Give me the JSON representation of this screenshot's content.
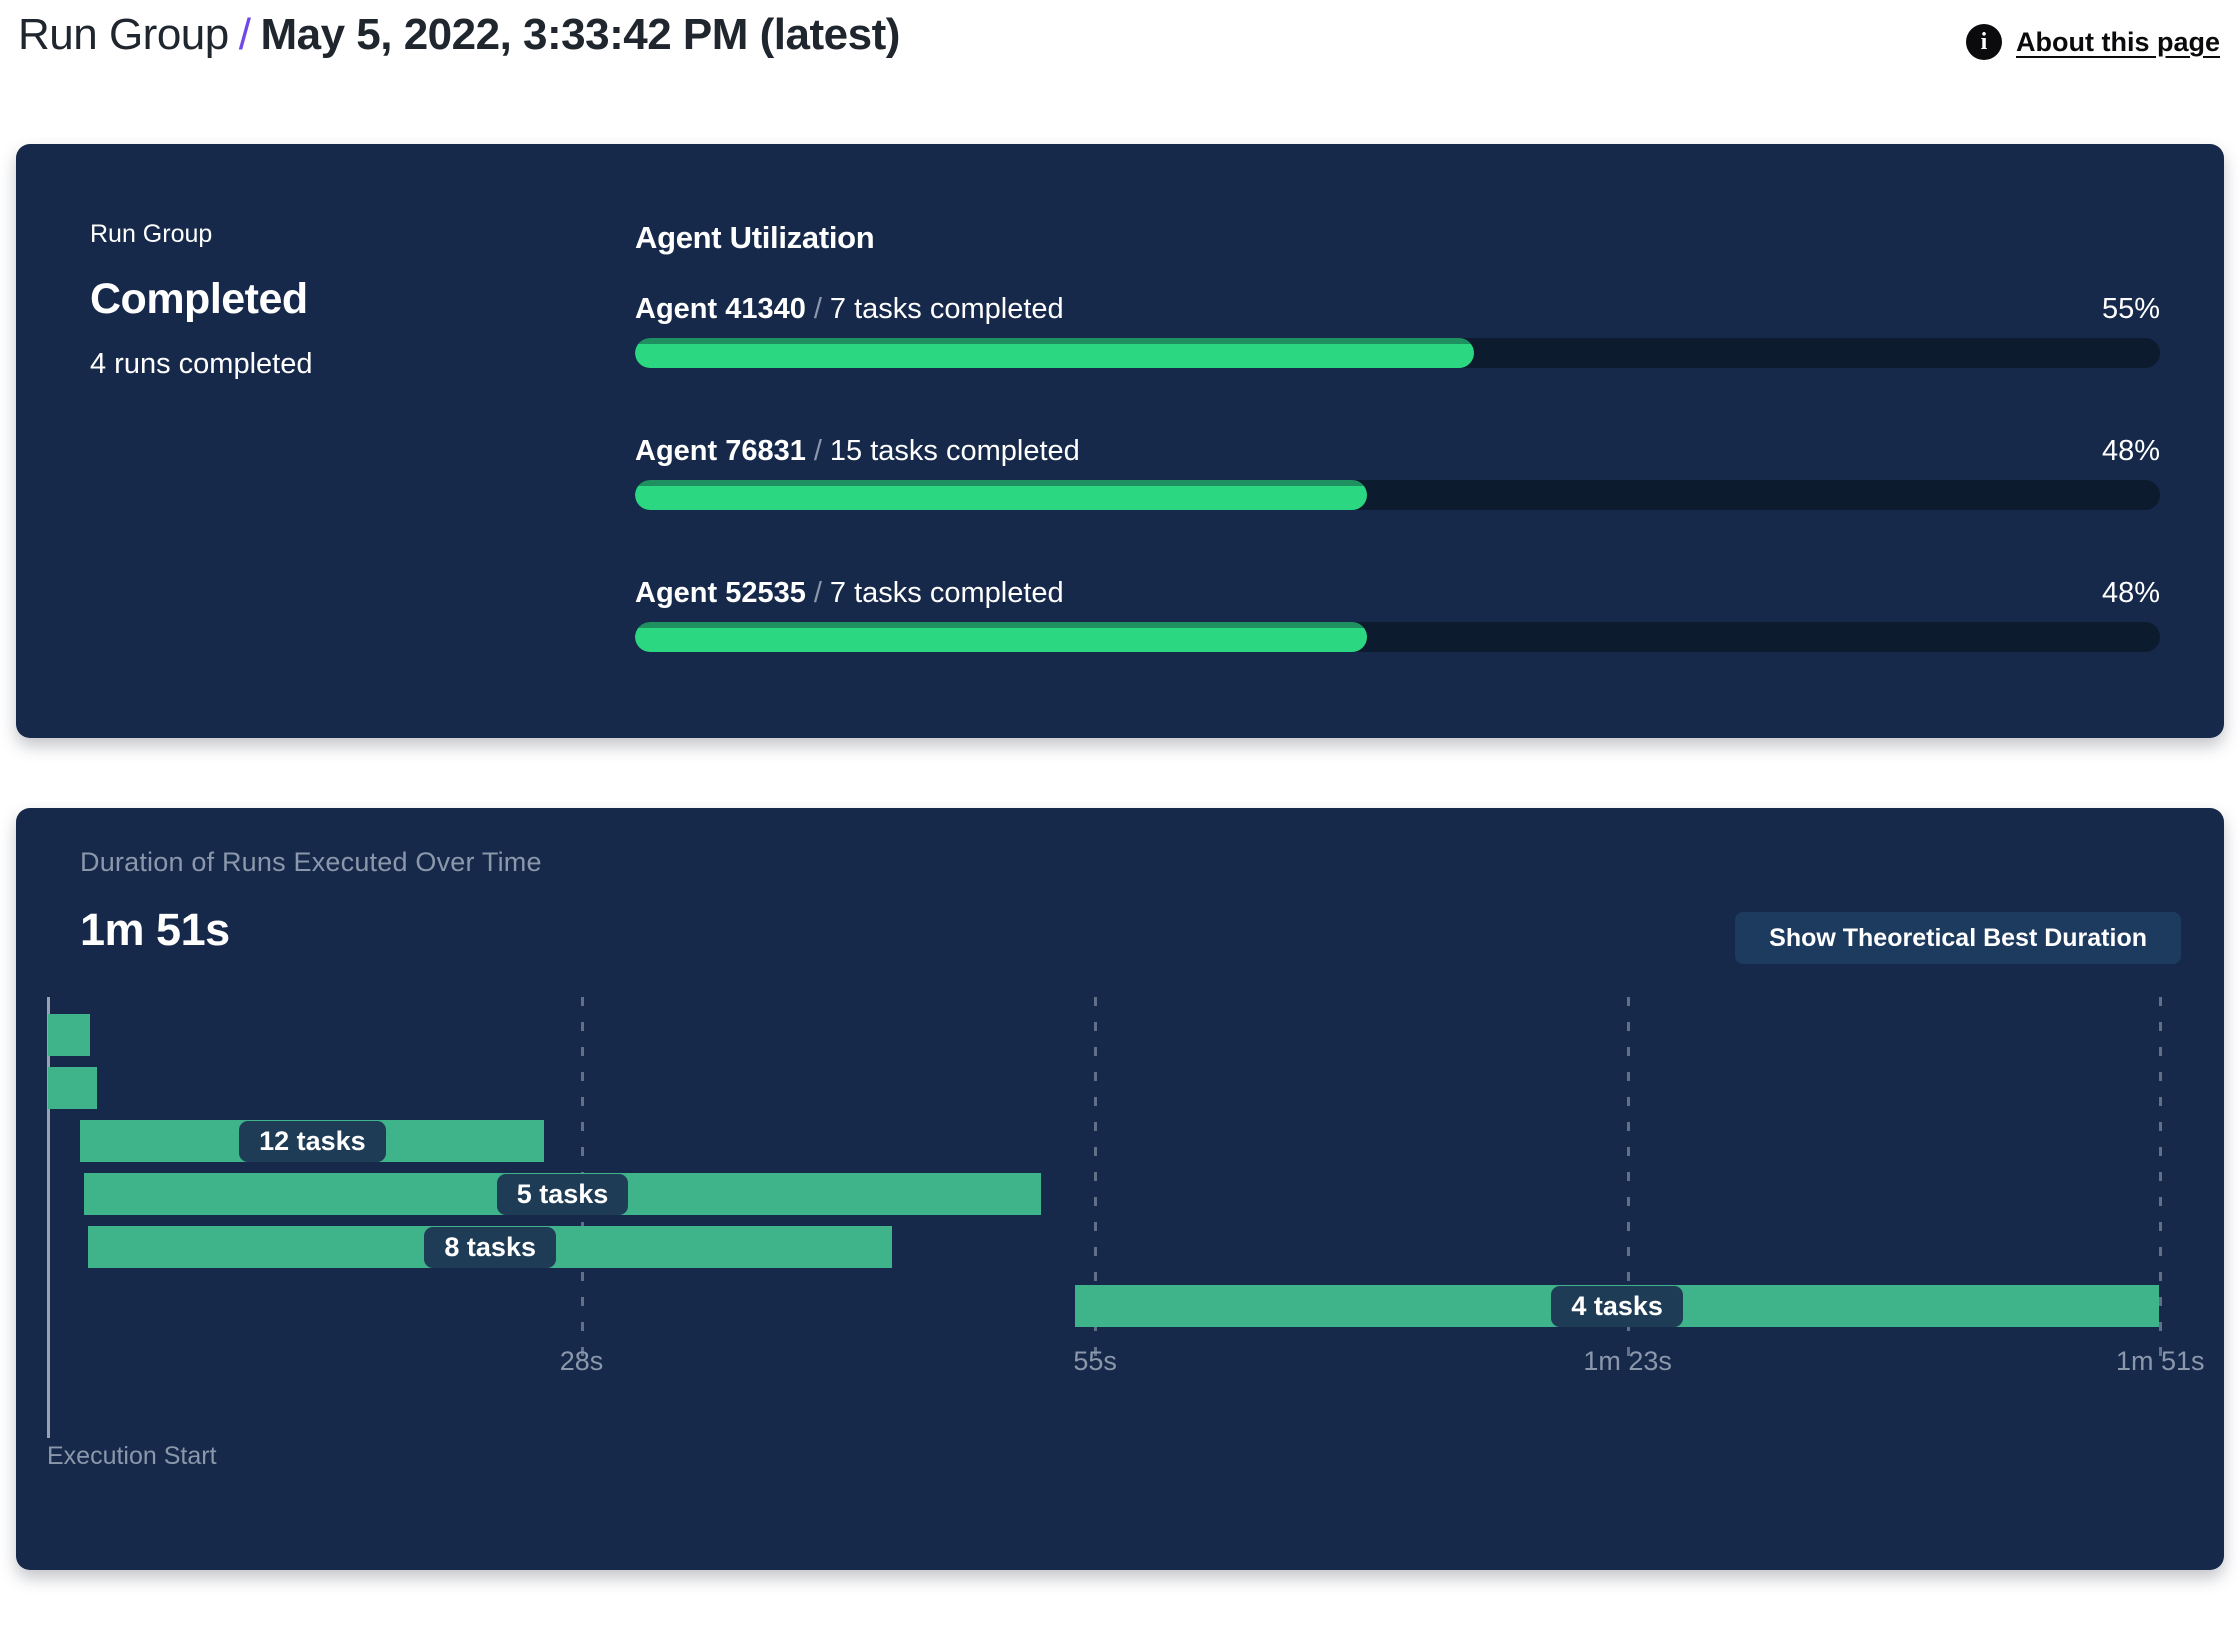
{
  "header": {
    "breadcrumb_prefix": "Run Group",
    "separator": "/",
    "title": "May 5, 2022, 3:33:42 PM (latest)",
    "about_link": "About this page",
    "info_icon_glyph": "i"
  },
  "run_group_panel": {
    "eyebrow": "Run Group",
    "status": "Completed",
    "runs_summary": "4 runs completed",
    "utilization_title": "Agent Utilization",
    "agents": [
      {
        "name": "Agent 41340",
        "separator": "/",
        "tasks": "7 tasks completed",
        "percent_label": "55%",
        "percent": 55
      },
      {
        "name": "Agent 76831",
        "separator": "/",
        "tasks": "15 tasks completed",
        "percent_label": "48%",
        "percent": 48
      },
      {
        "name": "Agent 52535",
        "separator": "/",
        "tasks": "7 tasks completed",
        "percent_label": "48%",
        "percent": 48
      }
    ]
  },
  "duration_panel": {
    "title": "Duration of Runs Executed Over Time",
    "total_duration": "1m 51s",
    "button_label": "Show Theoretical Best Duration",
    "execution_start_label": "Execution Start"
  },
  "chart_data": [
    {
      "type": "bar",
      "title": "Agent Utilization",
      "categories": [
        "Agent 41340",
        "Agent 76831",
        "Agent 52535"
      ],
      "values": [
        55,
        48,
        48
      ],
      "unit": "%",
      "xlim": [
        0,
        100
      ],
      "annotations": [
        "7 tasks completed",
        "15 tasks completed",
        "7 tasks completed"
      ]
    },
    {
      "type": "gantt",
      "title": "Duration of Runs Executed Over Time",
      "total_duration_s": 111,
      "total_duration_label": "1m 51s",
      "xlabel": "Execution Start",
      "x_ticks": [
        {
          "seconds": 28,
          "label": "28s"
        },
        {
          "seconds": 55,
          "label": "55s"
        },
        {
          "seconds": 83,
          "label": "1m 23s"
        },
        {
          "seconds": 111,
          "label": "1m 51s"
        }
      ],
      "bars": [
        {
          "label": "",
          "start_s": 0.0,
          "end_s": 2.2
        },
        {
          "label": "",
          "start_s": 0.0,
          "end_s": 2.6
        },
        {
          "label": "12 tasks",
          "start_s": 1.7,
          "end_s": 26.1
        },
        {
          "label": "5 tasks",
          "start_s": 1.9,
          "end_s": 52.2
        },
        {
          "label": "8 tasks",
          "start_s": 2.1,
          "end_s": 44.4
        },
        {
          "label": "4 tasks",
          "start_s": 54.0,
          "end_s": 111.0
        }
      ]
    }
  ],
  "colors": {
    "panel_background": "#17294a",
    "progress_fill": "#2bd781",
    "progress_fill_edge": "#1f9161",
    "progress_track": "#0d1b2e",
    "gantt_bar": "#3fb38a",
    "task_pill": "#1e3c56",
    "accent_purple": "#7048e8",
    "muted_text": "#8b98ab",
    "button_background": "#1d3a5f"
  }
}
